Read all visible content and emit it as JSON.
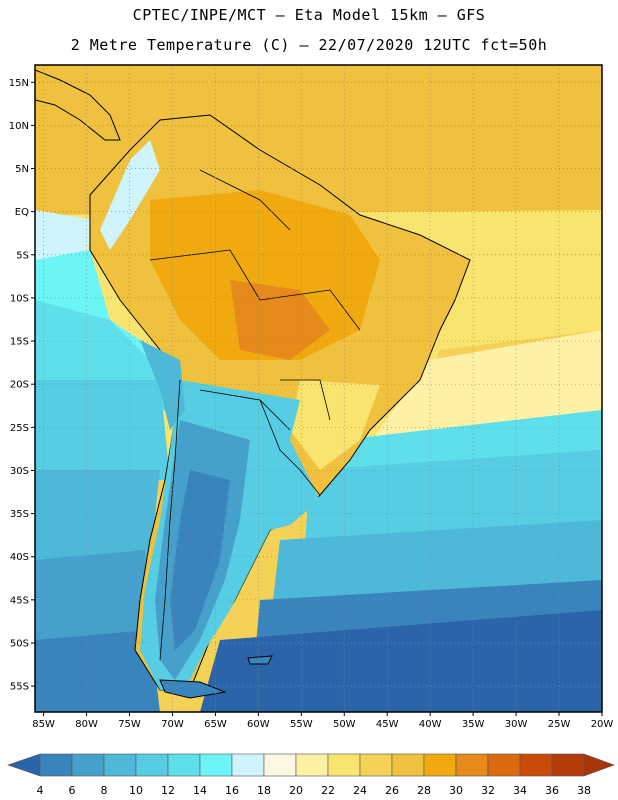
{
  "header": {
    "line1": "CPTEC/INPE/MCT  –  Eta Model 15km  –  GFS",
    "line2": "2 Metre Temperature (C) – 22/07/2020 12UTC fct=50h"
  },
  "map": {
    "lon_range": [
      -86,
      -20
    ],
    "lat_range": [
      -58,
      17
    ],
    "lat_ticks": [
      {
        "value": 15,
        "label": "15N"
      },
      {
        "value": 10,
        "label": "10N"
      },
      {
        "value": 5,
        "label": "5N"
      },
      {
        "value": 0,
        "label": "EQ"
      },
      {
        "value": -5,
        "label": "5S"
      },
      {
        "value": -10,
        "label": "10S"
      },
      {
        "value": -15,
        "label": "15S"
      },
      {
        "value": -20,
        "label": "20S"
      },
      {
        "value": -25,
        "label": "25S"
      },
      {
        "value": -30,
        "label": "30S"
      },
      {
        "value": -35,
        "label": "35S"
      },
      {
        "value": -40,
        "label": "40S"
      },
      {
        "value": -45,
        "label": "45S"
      },
      {
        "value": -50,
        "label": "50S"
      },
      {
        "value": -55,
        "label": "55S"
      }
    ],
    "lon_ticks": [
      {
        "value": -85,
        "label": "85W"
      },
      {
        "value": -80,
        "label": "80W"
      },
      {
        "value": -75,
        "label": "75W"
      },
      {
        "value": -70,
        "label": "70W"
      },
      {
        "value": -65,
        "label": "65W"
      },
      {
        "value": -60,
        "label": "60W"
      },
      {
        "value": -55,
        "label": "55W"
      },
      {
        "value": -50,
        "label": "50W"
      },
      {
        "value": -45,
        "label": "45W"
      },
      {
        "value": -40,
        "label": "40W"
      },
      {
        "value": -35,
        "label": "35W"
      },
      {
        "value": -30,
        "label": "30W"
      },
      {
        "value": -25,
        "label": "25W"
      },
      {
        "value": -20,
        "label": "20W"
      }
    ],
    "grid": "dotted"
  },
  "colorbar": {
    "levels": [
      "4",
      "6",
      "8",
      "10",
      "12",
      "14",
      "16",
      "18",
      "20",
      "22",
      "24",
      "26",
      "28",
      "30",
      "32",
      "34",
      "36",
      "38"
    ],
    "colors": [
      "#2b64a8",
      "#3a84bd",
      "#45a1cc",
      "#4db8d8",
      "#56cde2",
      "#5fdfea",
      "#6cf5f7",
      "#cff4fb",
      "#fdf8e4",
      "#fdf1a6",
      "#f9e46f",
      "#f4d258",
      "#f0c13e",
      "#f0a90e",
      "#e58a1b",
      "#da6a12",
      "#c84b0a",
      "#b23c0a",
      "#a8340a"
    ]
  }
}
